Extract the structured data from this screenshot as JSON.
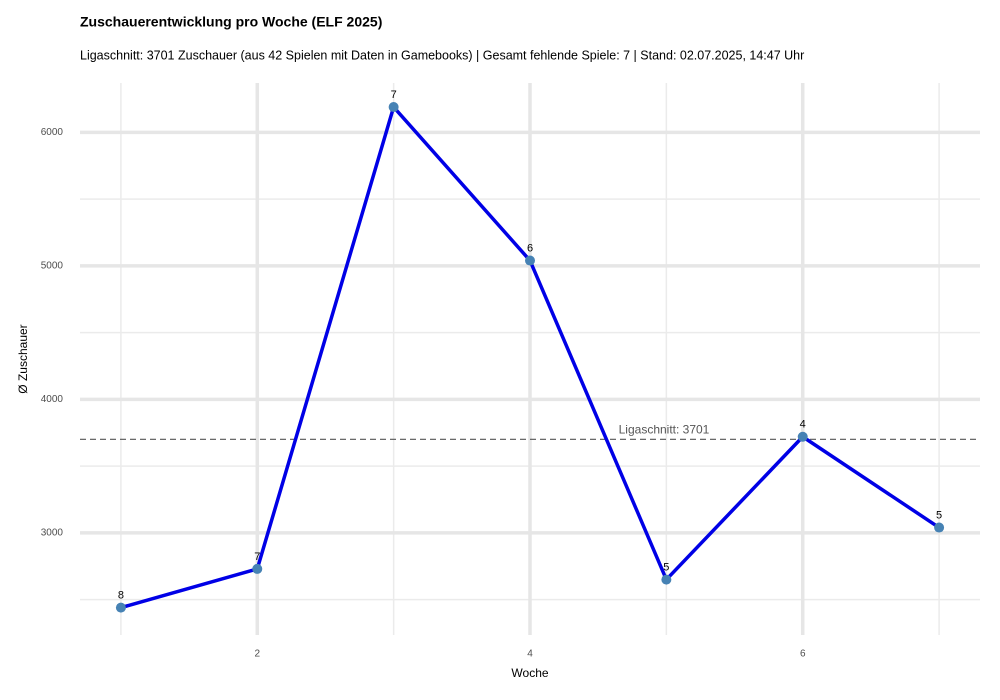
{
  "chart_data": {
    "type": "line",
    "title": "Zuschauerentwicklung pro Woche (ELF 2025)",
    "subtitle": "Ligaschnitt: 3701 Zuschauer (aus 42 Spielen mit Daten in Gamebooks) | Gesamt fehlende Spiele: 7 | Stand: 02.07.2025, 14:47 Uhr",
    "x_label": "Woche",
    "y_label": "Ø Zuschauer",
    "x": [
      1,
      2,
      3,
      4,
      5,
      6,
      7
    ],
    "series": [
      {
        "values": [
          2440,
          2730,
          6190,
          5040,
          2650,
          3720,
          3040
        ],
        "color": "#0000e6",
        "point_color": "#4682b4",
        "point_labels": [
          "8",
          "7",
          "7",
          "6",
          "5",
          "4",
          "5"
        ]
      }
    ],
    "reference_line": {
      "value": 3701,
      "label": "Ligaschnitt: 3701",
      "color": "#555555"
    },
    "xlim": [
      0.7,
      7.3
    ],
    "ylim": [
      2235,
      6370
    ],
    "xticks": [
      2,
      4,
      6
    ],
    "yticks": [
      3000,
      4000,
      5000,
      6000
    ],
    "x_minor_grid": [
      1,
      3,
      5,
      7
    ],
    "y_minor_grid": [
      2500,
      3500,
      4500,
      5500
    ],
    "grid": true
  }
}
